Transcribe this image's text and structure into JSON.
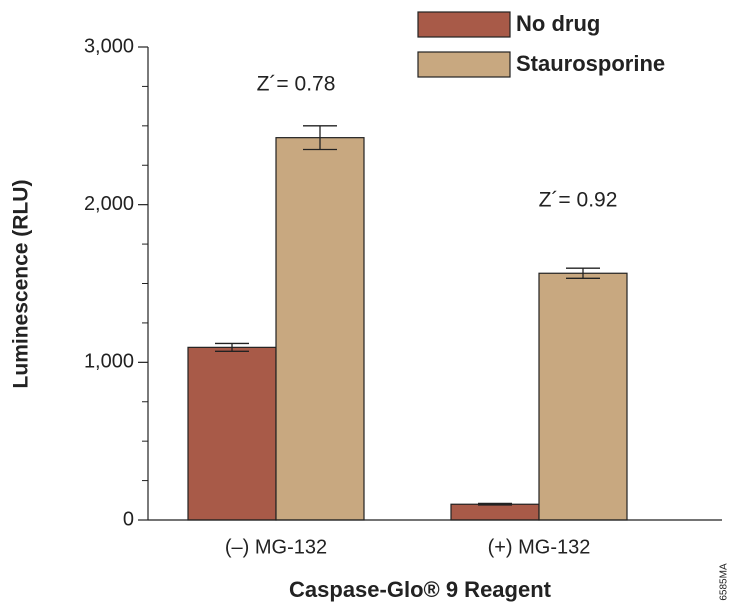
{
  "chart_data": {
    "type": "bar",
    "ylabel": "Luminescence (RLU)",
    "xlabel": "Caspase-Glo® 9 Reagent",
    "categories": [
      "(–) MG-132",
      "(+)  MG-132"
    ],
    "series": [
      {
        "name": "No drug",
        "color": "#a85a48",
        "values": [
          1095,
          100
        ],
        "errors": [
          25,
          5
        ]
      },
      {
        "name": "Staurosporine",
        "color": "#c8a880",
        "values": [
          2425,
          1565
        ],
        "errors": [
          75,
          32
        ]
      }
    ],
    "ylim": [
      0,
      3000
    ],
    "yticks": [
      0,
      {
        "value": 1000,
        "label": "1,000"
      },
      {
        "value": 2000,
        "label": "2,000"
      },
      {
        "value": 3000,
        "label": "3,000"
      }
    ],
    "yminorticks": [
      250,
      500,
      750,
      1250,
      1500,
      1750,
      2250,
      2500,
      2750
    ],
    "annotations": [
      "Z´= 0.78",
      "Z´= 0.92",
      "6585MA"
    ],
    "legend": "top-right"
  }
}
